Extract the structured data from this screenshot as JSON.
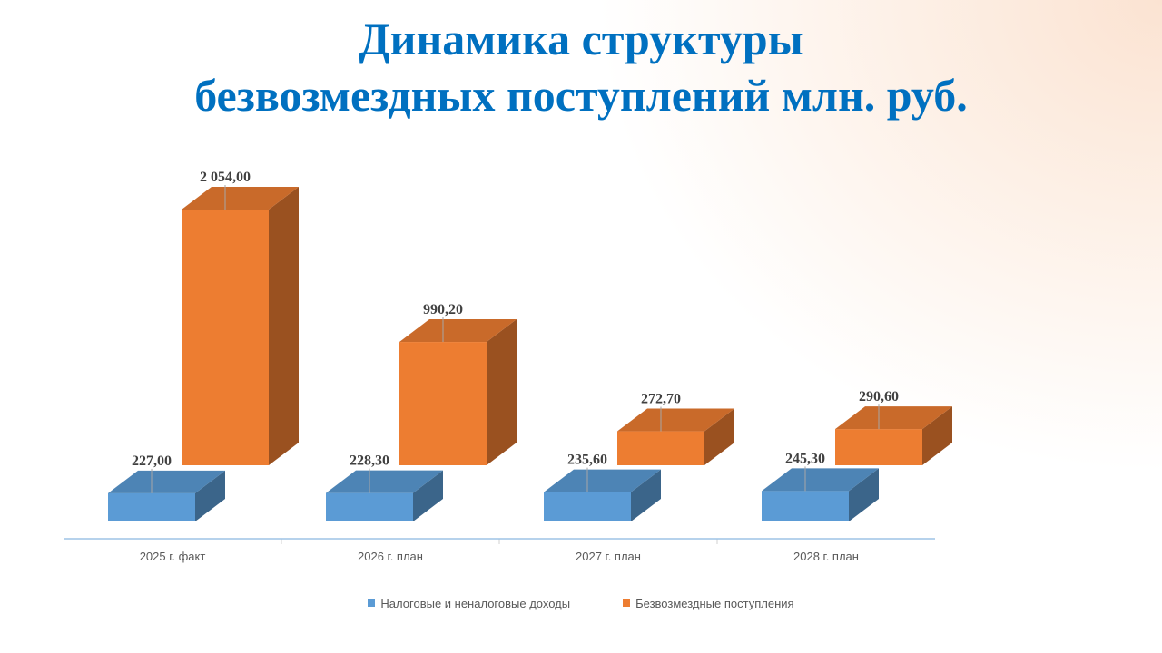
{
  "title_line1": "Динамика структуры",
  "title_line2": "безвозмездных поступлений млн. руб.",
  "chart_data": {
    "type": "bar",
    "categories": [
      "2025 г. факт",
      "2026 г. план",
      "2027 г. план",
      "2028 г. план"
    ],
    "series": [
      {
        "name": "Налоговые и неналоговые доходы",
        "values": [
          227.0,
          228.3,
          235.6,
          245.3
        ],
        "labels": [
          "227,00",
          "228,30",
          "235,60",
          "245,30"
        ],
        "color": "#5b9bd5"
      },
      {
        "name": "Безвозмездные поступления",
        "values": [
          2054.0,
          990.2,
          272.7,
          290.6
        ],
        "labels": [
          "2 054,00",
          "990,20",
          "272,70",
          "290,60"
        ],
        "color": "#ed7d31"
      }
    ],
    "legend_position": "bottom",
    "grid": false,
    "style": "3d-clustered-column"
  }
}
